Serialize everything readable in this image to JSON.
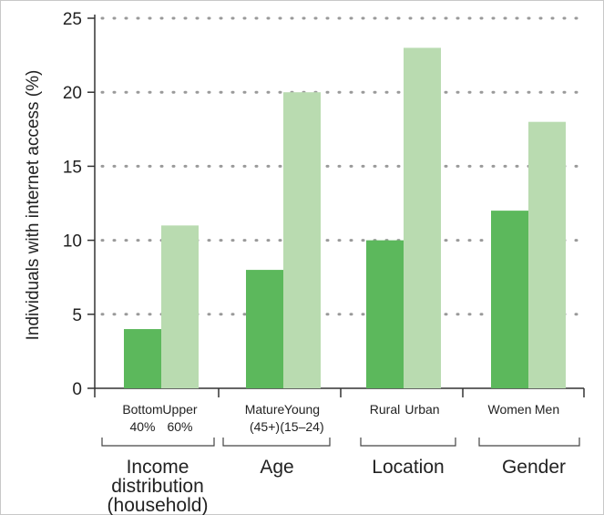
{
  "chart_data": {
    "type": "bar",
    "ylabel": "Individuals with internet access (%)",
    "ylim": [
      0,
      25
    ],
    "yticks": [
      "0",
      "5",
      "10",
      "15",
      "20",
      "25"
    ],
    "grid": "dotted horizontal",
    "colors": {
      "first_bar": "#5cb85c",
      "second_bar": "#b9dbb0"
    },
    "groups": [
      {
        "label": "Income distribution (household)",
        "label_lines": [
          "Income",
          "distribution",
          "(household)"
        ],
        "bars": [
          {
            "label_lines": [
              "Bottom",
              "40%"
            ],
            "value": 4
          },
          {
            "label_lines": [
              "Upper",
              "60%"
            ],
            "value": 11
          }
        ]
      },
      {
        "label": "Age",
        "label_lines": [
          "Age"
        ],
        "bars": [
          {
            "label_lines": [
              "Mature",
              "(45+)"
            ],
            "value": 8
          },
          {
            "label_lines": [
              "Young",
              "(15–24)"
            ],
            "value": 20
          }
        ]
      },
      {
        "label": "Location",
        "label_lines": [
          "Location"
        ],
        "bars": [
          {
            "label_lines": [
              "Rural"
            ],
            "value": 10
          },
          {
            "label_lines": [
              "Urban"
            ],
            "value": 23
          }
        ]
      },
      {
        "label": "Gender",
        "label_lines": [
          "Gender"
        ],
        "bars": [
          {
            "label_lines": [
              "Women"
            ],
            "value": 12
          },
          {
            "label_lines": [
              "Men"
            ],
            "value": 18
          }
        ]
      }
    ]
  }
}
